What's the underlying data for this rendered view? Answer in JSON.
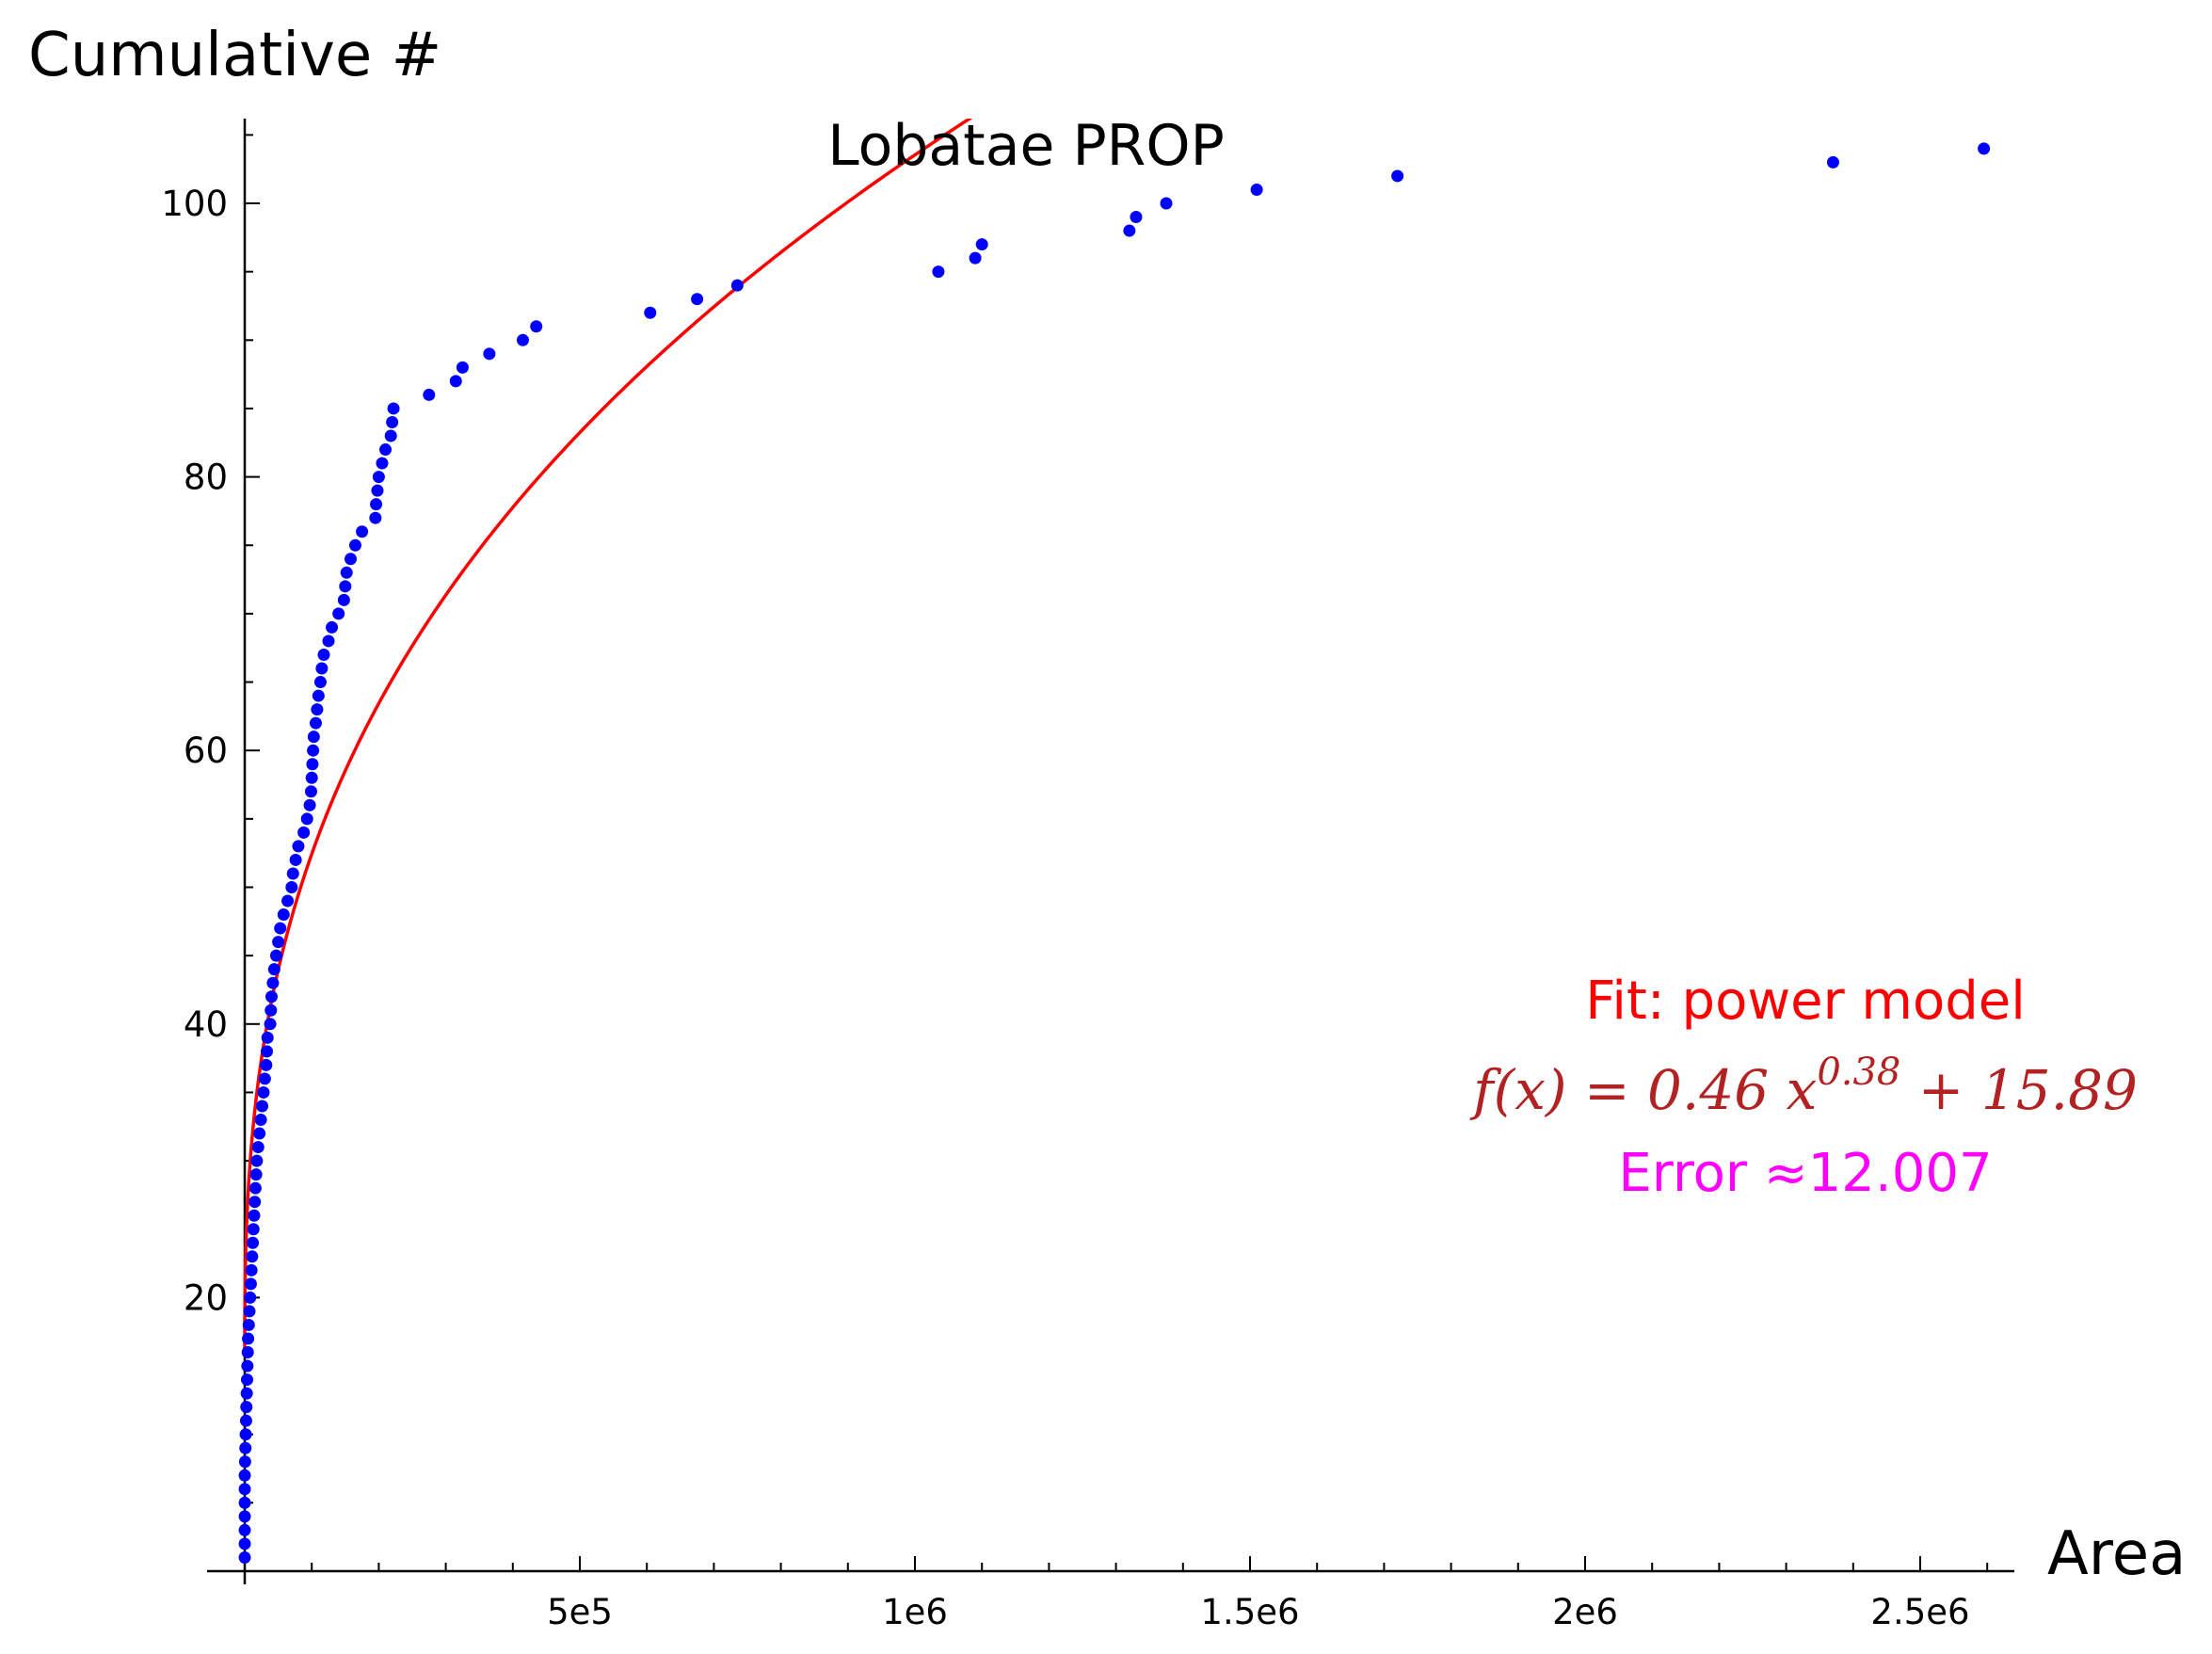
{
  "chart_data": {
    "type": "scatter",
    "title": "Lobatae PROP",
    "xlabel": "Area",
    "ylabel": "Cumulative #",
    "xlim": [
      -50000,
      2650000
    ],
    "ylim": [
      0,
      106
    ],
    "grid": false,
    "xticks": [
      {
        "value": 500000,
        "label": "5e5"
      },
      {
        "value": 1000000,
        "label": "1e6"
      },
      {
        "value": 1500000,
        "label": "1.5e6"
      },
      {
        "value": 2000000,
        "label": "2e6"
      },
      {
        "value": 2500000,
        "label": "2.5e6"
      }
    ],
    "yticks": [
      {
        "value": 20,
        "label": "20"
      },
      {
        "value": 40,
        "label": "40"
      },
      {
        "value": 60,
        "label": "60"
      },
      {
        "value": 80,
        "label": "80"
      },
      {
        "value": 100,
        "label": "100"
      }
    ],
    "series": [
      {
        "kind": "points",
        "color": "#0000ff",
        "points": [
          [
            0,
            1
          ],
          [
            0,
            2
          ],
          [
            0,
            3
          ],
          [
            0,
            4
          ],
          [
            0,
            5
          ],
          [
            0,
            6
          ],
          [
            0,
            7
          ],
          [
            500,
            8
          ],
          [
            1000,
            9
          ],
          [
            1500,
            10
          ],
          [
            2000,
            11
          ],
          [
            2500,
            12
          ],
          [
            3000,
            13
          ],
          [
            3500,
            14
          ],
          [
            4000,
            15
          ],
          [
            4500,
            16
          ],
          [
            5000,
            17
          ],
          [
            6000,
            18
          ],
          [
            7000,
            19
          ],
          [
            8000,
            20
          ],
          [
            9000,
            21
          ],
          [
            10000,
            22
          ],
          [
            11000,
            23
          ],
          [
            12000,
            24
          ],
          [
            13000,
            25
          ],
          [
            14000,
            26
          ],
          [
            15000,
            27
          ],
          [
            16000,
            28
          ],
          [
            17000,
            29
          ],
          [
            18000,
            30
          ],
          [
            20000,
            31
          ],
          [
            22000,
            32
          ],
          [
            24000,
            33
          ],
          [
            26000,
            34
          ],
          [
            28000,
            35
          ],
          [
            30000,
            36
          ],
          [
            32000,
            37
          ],
          [
            33000,
            38
          ],
          [
            34000,
            39
          ],
          [
            38000,
            40
          ],
          [
            39000,
            41
          ],
          [
            40000,
            42
          ],
          [
            42000,
            43
          ],
          [
            44000,
            44
          ],
          [
            47000,
            45
          ],
          [
            50000,
            46
          ],
          [
            53000,
            47
          ],
          [
            58000,
            48
          ],
          [
            64000,
            49
          ],
          [
            70000,
            50
          ],
          [
            72000,
            51
          ],
          [
            76000,
            52
          ],
          [
            80000,
            53
          ],
          [
            88000,
            54
          ],
          [
            93000,
            55
          ],
          [
            97000,
            56
          ],
          [
            99000,
            57
          ],
          [
            100000,
            58
          ],
          [
            101000,
            59
          ],
          [
            102000,
            60
          ],
          [
            103000,
            61
          ],
          [
            106000,
            62
          ],
          [
            108000,
            63
          ],
          [
            110000,
            64
          ],
          [
            113000,
            65
          ],
          [
            115000,
            66
          ],
          [
            118000,
            67
          ],
          [
            125000,
            68
          ],
          [
            130000,
            69
          ],
          [
            140000,
            70
          ],
          [
            148000,
            71
          ],
          [
            150000,
            72
          ],
          [
            152000,
            73
          ],
          [
            158000,
            74
          ],
          [
            165000,
            75
          ],
          [
            175000,
            76
          ],
          [
            195000,
            77
          ],
          [
            196000,
            78
          ],
          [
            198000,
            79
          ],
          [
            200000,
            80
          ],
          [
            205000,
            81
          ],
          [
            210000,
            82
          ],
          [
            218000,
            83
          ],
          [
            220000,
            84
          ],
          [
            222000,
            85
          ],
          [
            275000,
            86
          ],
          [
            315000,
            87
          ],
          [
            325000,
            88
          ],
          [
            365000,
            89
          ],
          [
            415000,
            90
          ],
          [
            435000,
            91
          ],
          [
            605000,
            92
          ],
          [
            675000,
            93
          ],
          [
            735000,
            94
          ],
          [
            1035000,
            95
          ],
          [
            1090000,
            96
          ],
          [
            1100000,
            97
          ],
          [
            1320000,
            98
          ],
          [
            1330000,
            99
          ],
          [
            1375000,
            100
          ],
          [
            1510000,
            101
          ],
          [
            1720000,
            102
          ],
          [
            2370000,
            103
          ],
          [
            2595000,
            104
          ]
        ]
      },
      {
        "kind": "curve",
        "color": "#ff0000",
        "a": 0.46,
        "b": 0.38,
        "c": 15.89
      }
    ],
    "annotations": {
      "fit_title": {
        "text": "Fit: power model",
        "color": "#ff0000"
      },
      "formula": {
        "text": "f(x) = 0.46 x^0.38 + 15.89",
        "color": "#b22222"
      },
      "error": {
        "text": "Error ≈12.007",
        "color": "#ff00ff"
      }
    }
  }
}
